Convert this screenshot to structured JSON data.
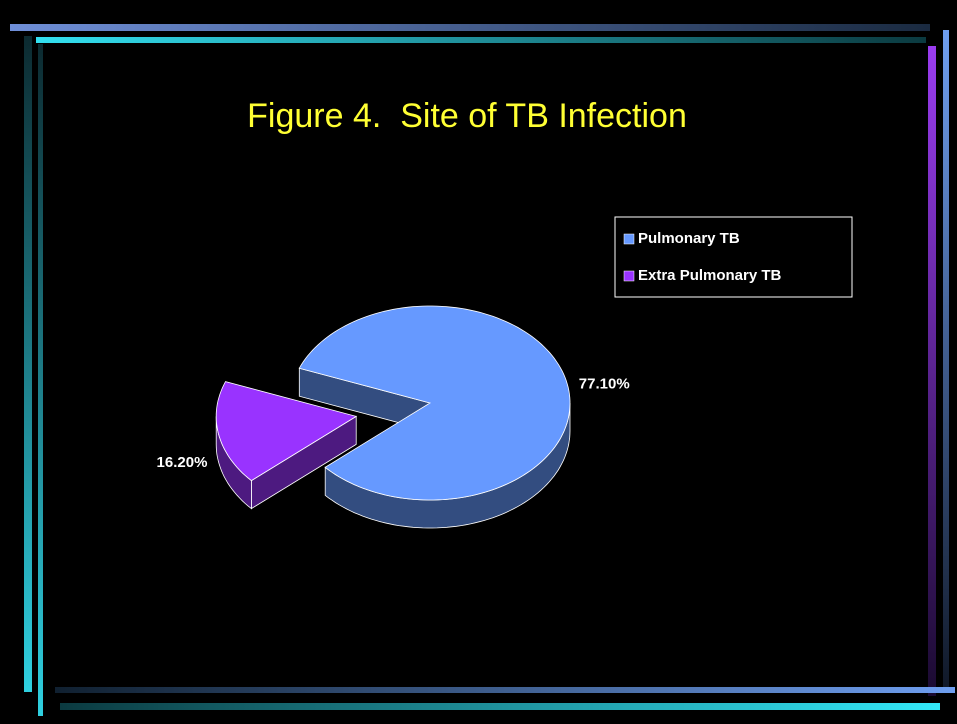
{
  "chart_data": {
    "type": "pie",
    "title": "Figure 4.  Site of TB Infection",
    "categories": [
      "Pulmonary TB",
      "Extra Pulmonary TB"
    ],
    "values": [
      77.1,
      16.2
    ],
    "value_labels": [
      "77.10%",
      "16.20%"
    ],
    "colors": [
      "#6699ff",
      "#9933ff"
    ],
    "explode": [
      false,
      true
    ],
    "legend": "upper right"
  }
}
